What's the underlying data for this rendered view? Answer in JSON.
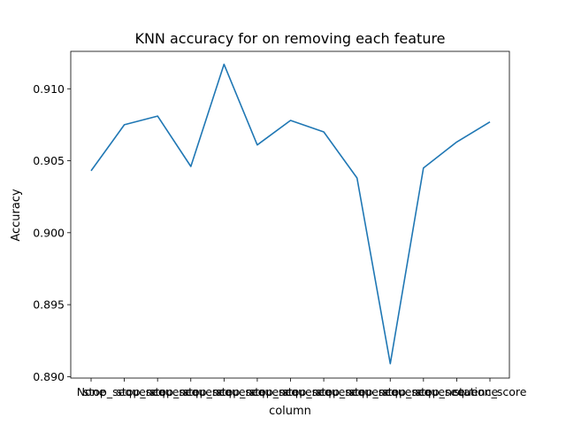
{
  "chart_data": {
    "type": "line",
    "title": "KNN accuracy for on removing each feature",
    "xlabel": "column",
    "ylabel": "Accuracy",
    "categories": [
      "None",
      "stop_sequence",
      "stop_sequence",
      "stop_sequence",
      "stop_sequence",
      "stop_sequence",
      "stop_sequence",
      "stop_sequence",
      "stop_sequence",
      "stop_sequence",
      "stop_sequence",
      "stop_sequence",
      "station_score"
    ],
    "series": [
      {
        "values": [
          0.9043,
          0.9075,
          0.9081,
          0.9046,
          0.9117,
          0.9061,
          0.9078,
          0.907,
          0.9038,
          0.8909,
          0.9045,
          0.9063,
          0.9077
        ]
      }
    ],
    "ylim": [
      0.8899,
      0.9126
    ],
    "yticks": [
      "0.890",
      "0.895",
      "0.900",
      "0.905",
      "0.910"
    ],
    "ytick_values": [
      0.89,
      0.895,
      0.9,
      0.905,
      0.91
    ],
    "grid": false,
    "line_color": "#1f77b4"
  }
}
